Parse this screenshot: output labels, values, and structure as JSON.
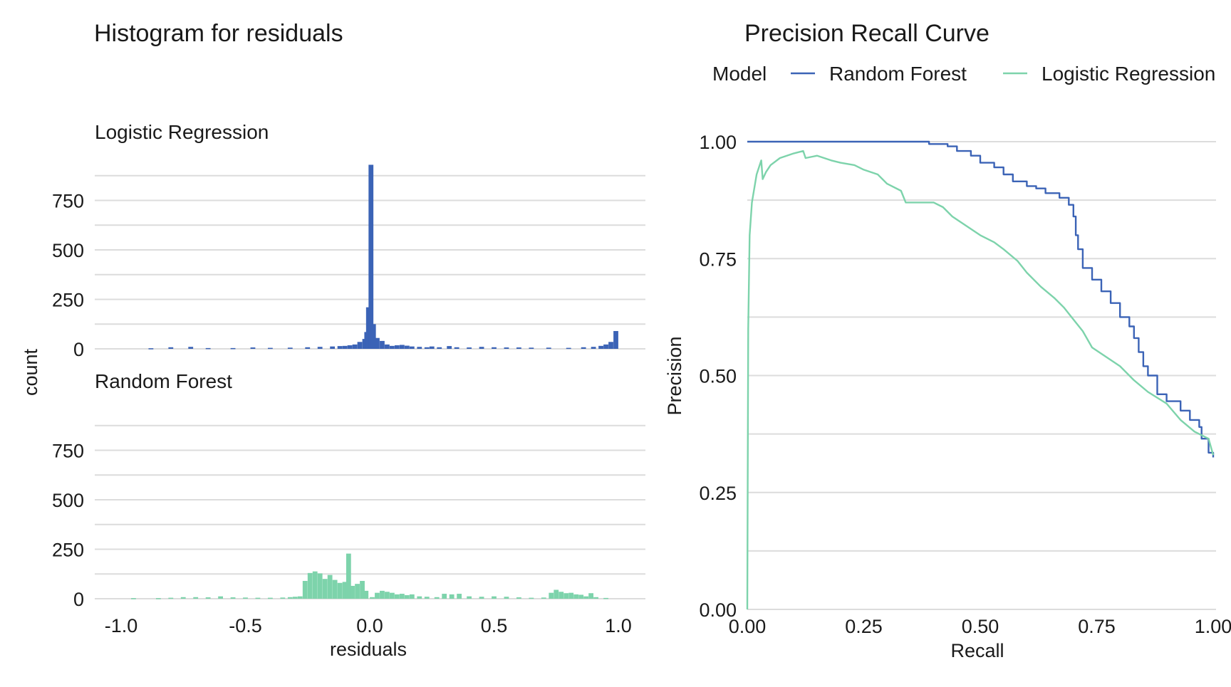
{
  "colors": {
    "blue": "#3b63b6",
    "green": "#7dd3ab",
    "grid": "#dcdcdc",
    "text": "#1a1a1a"
  },
  "histogram": {
    "title": "Histogram for residuals",
    "xlabel": "residuals",
    "ylabel": "count"
  },
  "pr": {
    "title": "Precision Recall Curve",
    "xlabel": "Recall",
    "ylabel": "Precision",
    "legend_title": "Model"
  },
  "chart_data": [
    {
      "type": "bar",
      "title": "Histogram for residuals",
      "xlabel": "residuals",
      "ylabel": "count",
      "xlim": [
        -1.05,
        1.05
      ],
      "ylim": [
        0,
        980
      ],
      "x_ticks": [
        -1.0,
        -0.5,
        0.0,
        0.5,
        1.0
      ],
      "x_tick_labels": [
        "-1.0",
        "-0.5",
        "0.0",
        "0.5",
        "1.0"
      ],
      "y_ticks": [
        0,
        250,
        500,
        750
      ],
      "y_tick_labels": [
        "0",
        "250",
        "500",
        "750"
      ],
      "bin_width": 0.0195,
      "grid": true,
      "panels": [
        {
          "name": "Logistic Regression",
          "color": "#3b63b6",
          "bins": [
            [
              -0.88,
              3
            ],
            [
              -0.8,
              8
            ],
            [
              -0.72,
              10
            ],
            [
              -0.65,
              4
            ],
            [
              -0.55,
              4
            ],
            [
              -0.47,
              7
            ],
            [
              -0.4,
              5
            ],
            [
              -0.32,
              6
            ],
            [
              -0.25,
              8
            ],
            [
              -0.2,
              10
            ],
            [
              -0.15,
              12
            ],
            [
              -0.12,
              14
            ],
            [
              -0.1,
              15
            ],
            [
              -0.08,
              18
            ],
            [
              -0.06,
              22
            ],
            [
              -0.04,
              35
            ],
            [
              -0.02,
              50
            ],
            [
              -0.012,
              85
            ],
            [
              -0.005,
              210
            ],
            [
              0.005,
              930
            ],
            [
              0.015,
              125
            ],
            [
              0.03,
              55
            ],
            [
              0.05,
              40
            ],
            [
              0.07,
              22
            ],
            [
              0.09,
              15
            ],
            [
              0.11,
              18
            ],
            [
              0.13,
              20
            ],
            [
              0.15,
              16
            ],
            [
              0.17,
              12
            ],
            [
              0.2,
              10
            ],
            [
              0.23,
              8
            ],
            [
              0.25,
              12
            ],
            [
              0.28,
              8
            ],
            [
              0.32,
              14
            ],
            [
              0.35,
              8
            ],
            [
              0.4,
              7
            ],
            [
              0.45,
              10
            ],
            [
              0.5,
              8
            ],
            [
              0.55,
              7
            ],
            [
              0.6,
              7
            ],
            [
              0.65,
              6
            ],
            [
              0.72,
              6
            ],
            [
              0.8,
              5
            ],
            [
              0.86,
              8
            ],
            [
              0.9,
              10
            ],
            [
              0.93,
              15
            ],
            [
              0.95,
              22
            ],
            [
              0.97,
              35
            ],
            [
              0.99,
              90
            ]
          ]
        },
        {
          "name": "Random Forest",
          "color": "#7dd3ab",
          "bins": [
            [
              -0.95,
              3
            ],
            [
              -0.85,
              3
            ],
            [
              -0.8,
              5
            ],
            [
              -0.75,
              8
            ],
            [
              -0.7,
              8
            ],
            [
              -0.65,
              7
            ],
            [
              -0.6,
              12
            ],
            [
              -0.55,
              7
            ],
            [
              -0.5,
              6
            ],
            [
              -0.45,
              5
            ],
            [
              -0.4,
              5
            ],
            [
              -0.35,
              6
            ],
            [
              -0.32,
              8
            ],
            [
              -0.3,
              10
            ],
            [
              -0.28,
              12
            ],
            [
              -0.26,
              90
            ],
            [
              -0.24,
              130
            ],
            [
              -0.22,
              138
            ],
            [
              -0.2,
              128
            ],
            [
              -0.18,
              100
            ],
            [
              -0.16,
              120
            ],
            [
              -0.14,
              95
            ],
            [
              -0.12,
              80
            ],
            [
              -0.1,
              85
            ],
            [
              -0.085,
              228
            ],
            [
              -0.07,
              65
            ],
            [
              -0.05,
              75
            ],
            [
              -0.03,
              90
            ],
            [
              -0.015,
              40
            ],
            [
              0.01,
              8
            ],
            [
              0.03,
              30
            ],
            [
              0.05,
              40
            ],
            [
              0.07,
              35
            ],
            [
              0.09,
              30
            ],
            [
              0.11,
              22
            ],
            [
              0.13,
              25
            ],
            [
              0.15,
              18
            ],
            [
              0.17,
              22
            ],
            [
              0.2,
              12
            ],
            [
              0.23,
              10
            ],
            [
              0.27,
              8
            ],
            [
              0.3,
              25
            ],
            [
              0.33,
              22
            ],
            [
              0.36,
              25
            ],
            [
              0.4,
              12
            ],
            [
              0.45,
              10
            ],
            [
              0.5,
              12
            ],
            [
              0.55,
              10
            ],
            [
              0.6,
              7
            ],
            [
              0.65,
              5
            ],
            [
              0.7,
              6
            ],
            [
              0.73,
              30
            ],
            [
              0.75,
              45
            ],
            [
              0.77,
              35
            ],
            [
              0.79,
              28
            ],
            [
              0.81,
              30
            ],
            [
              0.83,
              22
            ],
            [
              0.85,
              20
            ],
            [
              0.87,
              12
            ],
            [
              0.89,
              28
            ],
            [
              0.91,
              8
            ],
            [
              0.95,
              4
            ]
          ]
        }
      ]
    },
    {
      "type": "line",
      "title": "Precision Recall Curve",
      "xlabel": "Recall",
      "ylabel": "Precision",
      "xlim": [
        0,
        1
      ],
      "ylim": [
        0,
        1
      ],
      "x_ticks": [
        0,
        0.25,
        0.5,
        0.75,
        1.0
      ],
      "x_tick_labels": [
        "0.00",
        "0.25",
        "0.50",
        "0.75",
        "1.00"
      ],
      "y_ticks": [
        0,
        0.25,
        0.5,
        0.75,
        1.0
      ],
      "y_tick_labels": [
        "0.00",
        "0.25",
        "0.50",
        "0.75",
        "1.00"
      ],
      "legend_title": "Model",
      "legend_position": "top",
      "grid": true,
      "series": [
        {
          "name": "Random Forest",
          "color": "#3b63b6",
          "step": true,
          "points": [
            [
              0.0,
              1.0
            ],
            [
              0.35,
              1.0
            ],
            [
              0.39,
              0.995
            ],
            [
              0.43,
              0.99
            ],
            [
              0.45,
              0.98
            ],
            [
              0.48,
              0.97
            ],
            [
              0.5,
              0.955
            ],
            [
              0.53,
              0.945
            ],
            [
              0.55,
              0.93
            ],
            [
              0.57,
              0.915
            ],
            [
              0.6,
              0.905
            ],
            [
              0.62,
              0.9
            ],
            [
              0.64,
              0.89
            ],
            [
              0.67,
              0.88
            ],
            [
              0.69,
              0.865
            ],
            [
              0.7,
              0.84
            ],
            [
              0.705,
              0.8
            ],
            [
              0.71,
              0.77
            ],
            [
              0.72,
              0.73
            ],
            [
              0.74,
              0.705
            ],
            [
              0.76,
              0.68
            ],
            [
              0.78,
              0.655
            ],
            [
              0.8,
              0.625
            ],
            [
              0.82,
              0.605
            ],
            [
              0.83,
              0.58
            ],
            [
              0.84,
              0.55
            ],
            [
              0.85,
              0.52
            ],
            [
              0.86,
              0.5
            ],
            [
              0.88,
              0.46
            ],
            [
              0.9,
              0.445
            ],
            [
              0.93,
              0.425
            ],
            [
              0.95,
              0.405
            ],
            [
              0.97,
              0.39
            ],
            [
              0.975,
              0.365
            ],
            [
              0.99,
              0.335
            ],
            [
              1.0,
              0.325
            ]
          ]
        },
        {
          "name": "Logistic Regression",
          "color": "#7dd3ab",
          "step": false,
          "points": [
            [
              0.0,
              0.0
            ],
            [
              0.002,
              0.6
            ],
            [
              0.005,
              0.8
            ],
            [
              0.01,
              0.87
            ],
            [
              0.02,
              0.93
            ],
            [
              0.03,
              0.96
            ],
            [
              0.033,
              0.92
            ],
            [
              0.04,
              0.935
            ],
            [
              0.05,
              0.95
            ],
            [
              0.07,
              0.965
            ],
            [
              0.1,
              0.975
            ],
            [
              0.12,
              0.98
            ],
            [
              0.125,
              0.965
            ],
            [
              0.15,
              0.97
            ],
            [
              0.18,
              0.96
            ],
            [
              0.2,
              0.955
            ],
            [
              0.23,
              0.95
            ],
            [
              0.25,
              0.94
            ],
            [
              0.28,
              0.93
            ],
            [
              0.3,
              0.91
            ],
            [
              0.33,
              0.895
            ],
            [
              0.34,
              0.87
            ],
            [
              0.37,
              0.87
            ],
            [
              0.4,
              0.87
            ],
            [
              0.42,
              0.86
            ],
            [
              0.44,
              0.84
            ],
            [
              0.47,
              0.82
            ],
            [
              0.5,
              0.8
            ],
            [
              0.53,
              0.785
            ],
            [
              0.55,
              0.77
            ],
            [
              0.58,
              0.745
            ],
            [
              0.6,
              0.72
            ],
            [
              0.63,
              0.69
            ],
            [
              0.66,
              0.665
            ],
            [
              0.68,
              0.645
            ],
            [
              0.7,
              0.62
            ],
            [
              0.72,
              0.595
            ],
            [
              0.74,
              0.56
            ],
            [
              0.77,
              0.54
            ],
            [
              0.8,
              0.52
            ],
            [
              0.83,
              0.49
            ],
            [
              0.86,
              0.465
            ],
            [
              0.9,
              0.44
            ],
            [
              0.93,
              0.405
            ],
            [
              0.96,
              0.38
            ],
            [
              0.99,
              0.365
            ],
            [
              1.0,
              0.33
            ]
          ]
        }
      ]
    }
  ]
}
